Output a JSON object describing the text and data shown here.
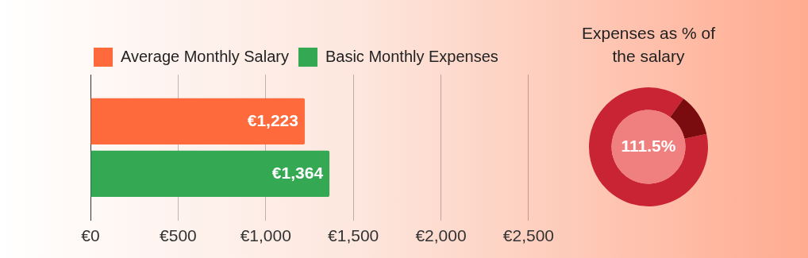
{
  "chart_data": [
    {
      "type": "bar",
      "orientation": "horizontal",
      "categories": [
        null
      ],
      "series": [
        {
          "name": "Average Monthly Salary",
          "color": "#fe6a3c",
          "values": [
            1223
          ],
          "value_labels": [
            "€1,223"
          ]
        },
        {
          "name": "Basic Monthly Expenses",
          "color": "#34a853",
          "values": [
            1364
          ],
          "value_labels": [
            "€1,364"
          ]
        }
      ],
      "xlim": [
        0,
        2500
      ],
      "xticks": [
        {
          "value": 0,
          "label": "€0"
        },
        {
          "value": 500,
          "label": "€500"
        },
        {
          "value": 1000,
          "label": "€1,000"
        },
        {
          "value": 1500,
          "label": "€1,500"
        },
        {
          "value": 2000,
          "label": "€2,000"
        },
        {
          "value": 2500,
          "label": "€2,500"
        }
      ],
      "grid": "x",
      "legend": "top left",
      "tick_labels": "x"
    },
    {
      "type": "donut",
      "title": "Expenses as % of the salary",
      "categories": [
        null,
        null
      ],
      "values": [
        88.5,
        11.5
      ],
      "colors": [
        "#c82434",
        "#7a0c10"
      ],
      "legend": false,
      "annotations": [
        "111.5%"
      ]
    }
  ]
}
